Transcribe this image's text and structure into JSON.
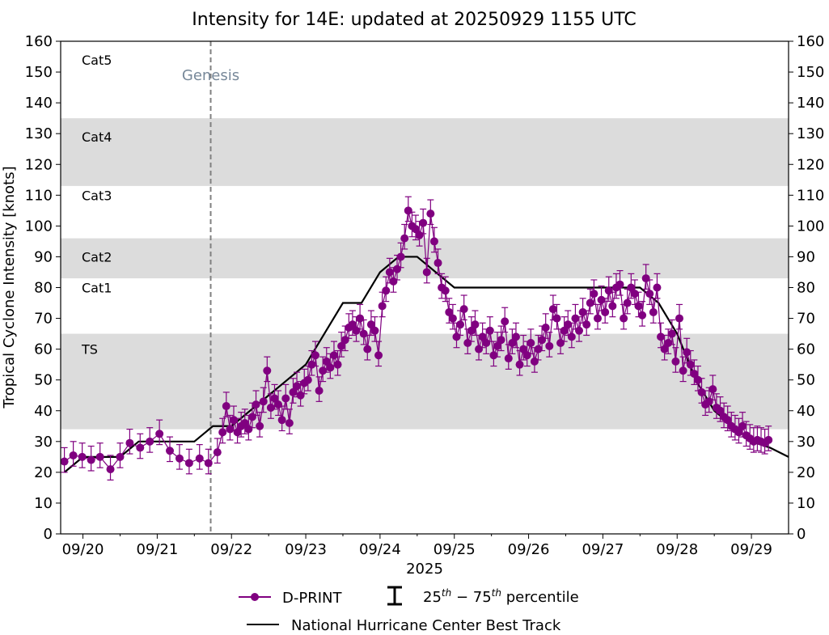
{
  "chart_data": {
    "type": "scatter",
    "title": "Intensity for 14E: updated at 20250929 1155 UTC",
    "xlabel": "2025",
    "ylabel": "Tropical Cyclone Intensity [knots]",
    "ylim": [
      0,
      160
    ],
    "yticks": [
      0,
      10,
      20,
      30,
      40,
      50,
      60,
      70,
      80,
      90,
      100,
      110,
      120,
      130,
      140,
      150,
      160
    ],
    "xlim": [
      -0.05,
      9.75
    ],
    "xticks": [
      {
        "pos": 0.25,
        "label": "09/20"
      },
      {
        "pos": 1.25,
        "label": "09/21"
      },
      {
        "pos": 2.25,
        "label": "09/22"
      },
      {
        "pos": 3.25,
        "label": "09/23"
      },
      {
        "pos": 4.25,
        "label": "09/24"
      },
      {
        "pos": 5.25,
        "label": "09/25"
      },
      {
        "pos": 6.25,
        "label": "09/26"
      },
      {
        "pos": 7.25,
        "label": "09/27"
      },
      {
        "pos": 8.25,
        "label": "09/28"
      },
      {
        "pos": 9.25,
        "label": "09/29"
      }
    ],
    "category_bands": [
      {
        "name": "TS",
        "y0": 34,
        "y1": 65,
        "shaded": true,
        "label_y": 60
      },
      {
        "name": "Cat1",
        "y0": 65,
        "y1": 83,
        "shaded": false,
        "label_y": 80
      },
      {
        "name": "Cat2",
        "y0": 83,
        "y1": 96,
        "shaded": true,
        "label_y": 90
      },
      {
        "name": "Cat3",
        "y0": 96,
        "y1": 113,
        "shaded": false,
        "label_y": 110
      },
      {
        "name": "Cat4",
        "y0": 113,
        "y1": 135,
        "shaded": true,
        "label_y": 129
      },
      {
        "name": "Cat5",
        "y0": 135,
        "y1": 160,
        "shaded": false,
        "label_y": 154
      }
    ],
    "genesis": {
      "x": 1.97,
      "label": "Genesis",
      "label_y": 149
    },
    "best_track": {
      "name": "National Hurricane Center Best Track",
      "x": [
        0,
        0.25,
        0.5,
        0.75,
        1.0,
        1.25,
        1.5,
        1.75,
        2.0,
        2.25,
        2.5,
        2.75,
        3.0,
        3.25,
        3.5,
        3.75,
        4.0,
        4.25,
        4.5,
        4.75,
        5.0,
        5.25,
        5.5,
        5.75,
        6.0,
        6.25,
        6.5,
        6.75,
        7.0,
        7.25,
        7.5,
        7.75,
        8.0,
        8.25,
        8.5,
        8.75,
        9.0,
        9.25,
        9.5,
        9.75
      ],
      "y": [
        20,
        25,
        25,
        25,
        30,
        30,
        30,
        30,
        35,
        35,
        40,
        45,
        50,
        55,
        65,
        75,
        75,
        85,
        90,
        90,
        85,
        80,
        80,
        80,
        80,
        80,
        80,
        80,
        80,
        80,
        80,
        80,
        75,
        65,
        50,
        40,
        35,
        30,
        28,
        25
      ]
    },
    "dprint": {
      "name": "D-PRINT",
      "x": [
        0.0,
        0.12,
        0.24,
        0.36,
        0.48,
        0.62,
        0.75,
        0.88,
        1.02,
        1.15,
        1.28,
        1.42,
        1.55,
        1.68,
        1.82,
        1.94,
        2.06,
        2.13,
        2.18,
        2.23,
        2.28,
        2.33,
        2.38,
        2.43,
        2.48,
        2.53,
        2.58,
        2.63,
        2.68,
        2.73,
        2.78,
        2.83,
        2.88,
        2.93,
        2.98,
        3.03,
        3.08,
        3.13,
        3.18,
        3.23,
        3.28,
        3.33,
        3.38,
        3.43,
        3.48,
        3.53,
        3.58,
        3.63,
        3.68,
        3.73,
        3.78,
        3.83,
        3.88,
        3.93,
        3.98,
        4.03,
        4.08,
        4.13,
        4.18,
        4.23,
        4.28,
        4.33,
        4.38,
        4.43,
        4.48,
        4.53,
        4.58,
        4.63,
        4.68,
        4.73,
        4.78,
        4.83,
        4.88,
        4.93,
        4.98,
        5.03,
        5.08,
        5.13,
        5.18,
        5.23,
        5.28,
        5.33,
        5.38,
        5.43,
        5.48,
        5.53,
        5.58,
        5.63,
        5.68,
        5.73,
        5.78,
        5.83,
        5.88,
        5.93,
        5.98,
        6.03,
        6.08,
        6.13,
        6.18,
        6.23,
        6.28,
        6.33,
        6.38,
        6.43,
        6.48,
        6.53,
        6.58,
        6.63,
        6.68,
        6.73,
        6.78,
        6.83,
        6.88,
        6.93,
        6.98,
        7.03,
        7.08,
        7.13,
        7.18,
        7.23,
        7.28,
        7.33,
        7.38,
        7.43,
        7.48,
        7.53,
        7.58,
        7.63,
        7.68,
        7.73,
        7.78,
        7.83,
        7.88,
        7.93,
        7.98,
        8.03,
        8.08,
        8.13,
        8.18,
        8.23,
        8.28,
        8.33,
        8.38,
        8.43,
        8.48,
        8.53,
        8.58,
        8.63,
        8.68,
        8.73,
        8.78,
        8.83,
        8.88,
        8.93,
        8.98,
        9.03,
        9.08,
        9.13,
        9.18,
        9.23,
        9.28,
        9.33,
        9.38,
        9.43,
        9.48
      ],
      "y": [
        23.5,
        25.5,
        25,
        24,
        25,
        21,
        25,
        29.5,
        28,
        30,
        32.5,
        27,
        24.5,
        23,
        24.5,
        23,
        26.5,
        33,
        41.5,
        34,
        37,
        33,
        35,
        36,
        34,
        38,
        42,
        35,
        43,
        53,
        41,
        44,
        42,
        37,
        44,
        36,
        46,
        48,
        45,
        49,
        50,
        55,
        58,
        46.5,
        53,
        56,
        54,
        58,
        55,
        61,
        63,
        67,
        68,
        66,
        70,
        65,
        60,
        68,
        66,
        58,
        74,
        79,
        85,
        82,
        86,
        90,
        96,
        105,
        100,
        99,
        97,
        101,
        85,
        104,
        95,
        88,
        80,
        79,
        72,
        70,
        64,
        68,
        73,
        62,
        66,
        68,
        60,
        64,
        62,
        66,
        58,
        61,
        63,
        69,
        57,
        62,
        64,
        55,
        60,
        58,
        62,
        56,
        60,
        63,
        67,
        61,
        73,
        70,
        62,
        66,
        68,
        64,
        70,
        66,
        72,
        68,
        75,
        78,
        70,
        76,
        72,
        79,
        74,
        80,
        81,
        70,
        75,
        80,
        78,
        74,
        71,
        83,
        78,
        72,
        80,
        64,
        60,
        62,
        65,
        56,
        70,
        53,
        59,
        55,
        52,
        50,
        46,
        42,
        43,
        47,
        41,
        40,
        38,
        37,
        35,
        34,
        33,
        35,
        32,
        31,
        30,
        30.5,
        30,
        29.5,
        30.5
      ],
      "spread_low": 3.5,
      "spread_high": 4.5
    },
    "legend": {
      "placement": "bottom-center",
      "entries": [
        "D-PRINT",
        "25th − 75th percentile",
        "National Hurricane Center Best Track"
      ],
      "percentile_prefix": "25",
      "percentile_mid": "75",
      "percentile_sup": "th",
      "percentile_dash": " − ",
      "percentile_word": " percentile"
    },
    "colors": {
      "dprint": "#800080",
      "best_track": "#000000",
      "band": "#dcdcdc",
      "genesis": "#808080",
      "genesis_label": "#778899"
    }
  }
}
